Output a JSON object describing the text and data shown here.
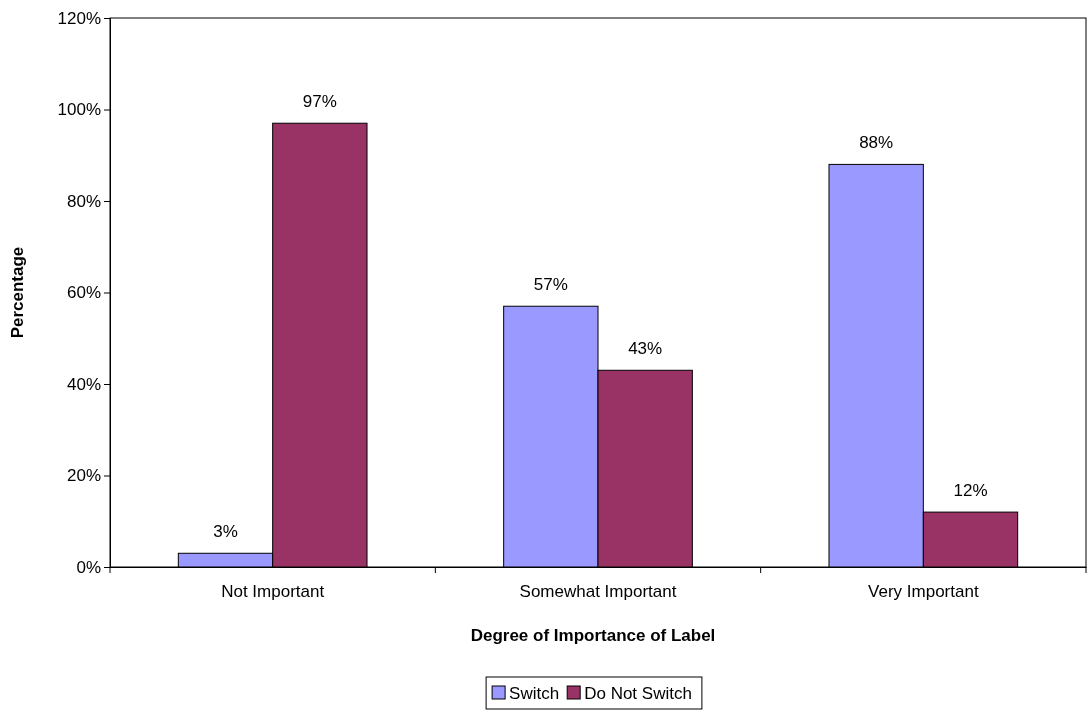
{
  "chart_data": {
    "type": "bar",
    "xlabel": "Degree of Importance of Label",
    "ylabel": "Percentage",
    "categories": [
      "Not Important",
      "Somewhat Important",
      "Very Important"
    ],
    "series": [
      {
        "name": "Switch",
        "color": "#9999ff",
        "values": [
          3,
          57,
          88
        ],
        "value_labels": [
          "3%",
          "57%",
          "88%"
        ]
      },
      {
        "name": "Do Not Switch",
        "color": "#993366",
        "values": [
          97,
          43,
          12
        ],
        "value_labels": [
          "97%",
          "43%",
          "12%"
        ]
      }
    ],
    "ylim": [
      0,
      120
    ],
    "yticks": [
      {
        "value": 0,
        "label": "0%"
      },
      {
        "value": 20,
        "label": "20%"
      },
      {
        "value": 40,
        "label": "40%"
      },
      {
        "value": 60,
        "label": "60%"
      },
      {
        "value": 80,
        "label": "80%"
      },
      {
        "value": 100,
        "label": "100%"
      },
      {
        "value": 120,
        "label": "120%"
      }
    ],
    "grid": false,
    "legend": "bottom"
  }
}
